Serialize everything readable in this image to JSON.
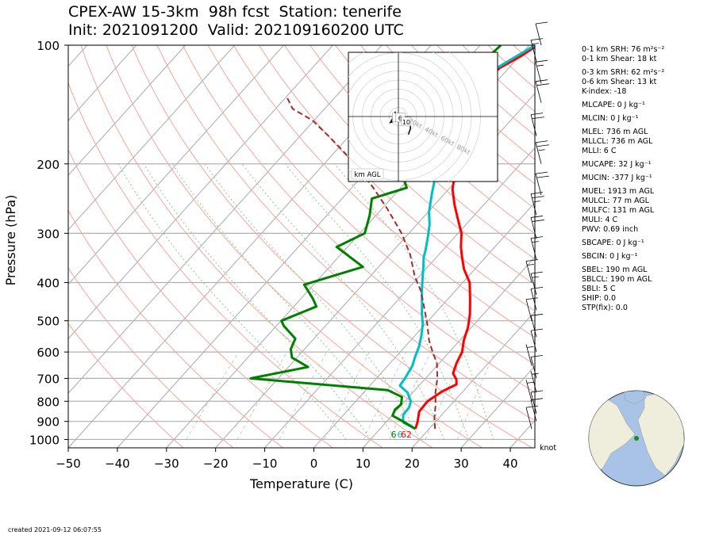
{
  "header": {
    "title_line1": "CPEX-AW 15-3km  98h fcst  Station: tenerife",
    "title_line2": "Init: 2021091200  Valid: 202109160200 UTC"
  },
  "footer": {
    "created": "created 2021-09-12 06:07:55",
    "barb_unit": "knot"
  },
  "indices": [
    {
      "label": "0-1 km SRH: 76 m²s⁻²"
    },
    {
      "label": "0-1 km Shear: 18 kt"
    },
    {
      "label": "0-3 km SRH: 62 m²s⁻²"
    },
    {
      "label": "0-6 km Shear: 13 kt"
    },
    {
      "label": "K-index: -18"
    },
    {
      "label": "MLCAPE: 0 J kg⁻¹"
    },
    {
      "label": "MLCIN: 0 J kg⁻¹"
    },
    {
      "label": "MLEL: 736 m AGL"
    },
    {
      "label": "MLLCL: 736 m AGL"
    },
    {
      "label": "MLLI: 6 C"
    },
    {
      "label": "MUCAPE: 32 J kg⁻¹"
    },
    {
      "label": "MUCIN: -377 J kg⁻¹"
    },
    {
      "label": "MUEL: 1913 m AGL"
    },
    {
      "label": "MULCL: 77 m AGL"
    },
    {
      "label": "MULFC: 131 m AGL"
    },
    {
      "label": "MULI: 4 C"
    },
    {
      "label": "PWV: 0.69 inch"
    },
    {
      "label": "SBCAPE: 0 J kg⁻¹"
    },
    {
      "label": "SBCIN: 0 J kg⁻¹"
    },
    {
      "label": "SBEL: 190 m AGL"
    },
    {
      "label": "SBLCL: 190 m AGL"
    },
    {
      "label": "SBLI: 5 C"
    },
    {
      "label": "SHIP: 0.0"
    },
    {
      "label": "STP(fix): 0.0"
    }
  ],
  "chart_data": [
    {
      "type": "line",
      "subtype": "skew-T log-P diagram",
      "xlabel": "Temperature (C)",
      "ylabel": "Pressure (hPa)",
      "xlim": [
        -50,
        45
      ],
      "ylim": [
        1050,
        100
      ],
      "y_scale": "log",
      "x_ticks": [
        -50,
        -40,
        -30,
        -20,
        -10,
        0,
        10,
        20,
        30,
        40
      ],
      "y_ticks": [
        100,
        200,
        300,
        400,
        500,
        600,
        700,
        800,
        900,
        1000
      ],
      "grid": true,
      "series": [
        {
          "name": "",
          "role": "temperature",
          "color": "#ff0000",
          "points": [
            [
              17.2,
              940
            ],
            [
              16.3,
              900
            ],
            [
              14.8,
              850
            ],
            [
              14.6,
              800
            ],
            [
              15.8,
              755
            ],
            [
              17.4,
              725
            ],
            [
              16.5,
              705
            ],
            [
              14.7,
              680
            ],
            [
              13.5,
              640
            ],
            [
              12.6,
              600
            ],
            [
              10.8,
              560
            ],
            [
              9.3,
              520
            ],
            [
              7.2,
              480
            ],
            [
              4.5,
              440
            ],
            [
              1.4,
              400
            ],
            [
              -2.2,
              370
            ],
            [
              -4.8,
              345
            ],
            [
              -6.9,
              325
            ],
            [
              -9.3,
              300
            ],
            [
              -12.8,
              275
            ],
            [
              -15.8,
              255
            ],
            [
              -19.2,
              232
            ],
            [
              -21.2,
              215
            ],
            [
              -23.6,
              195
            ],
            [
              -25.8,
              176
            ],
            [
              -28.4,
              160
            ],
            [
              -30.7,
              145
            ],
            [
              -32.4,
              132
            ],
            [
              -32.4,
              122
            ],
            [
              -31.8,
              114
            ],
            [
              -29.8,
              107
            ],
            [
              -28.3,
              100
            ]
          ]
        },
        {
          "name": "",
          "role": "dewpoint",
          "color": "#00bfc4",
          "points": [
            [
              17.2,
              940
            ],
            [
              13.5,
              905
            ],
            [
              12.1,
              865
            ],
            [
              12.0,
              830
            ],
            [
              11.2,
              800
            ],
            [
              8.9,
              760
            ],
            [
              6.1,
              730
            ],
            [
              5.8,
              700
            ],
            [
              5.5,
              680
            ],
            [
              5.0,
              650
            ],
            [
              4.0,
              620
            ],
            [
              2.8,
              580
            ],
            [
              1.3,
              545
            ],
            [
              -0.5,
              510
            ],
            [
              -2.6,
              480
            ],
            [
              -4.6,
              450
            ],
            [
              -6.8,
              420
            ],
            [
              -8.6,
              395
            ],
            [
              -10.9,
              365
            ],
            [
              -12.6,
              345
            ],
            [
              -13.6,
              330
            ],
            [
              -15.6,
              305
            ],
            [
              -17.4,
              285
            ],
            [
              -19.8,
              265
            ],
            [
              -22.6,
              238
            ],
            [
              -24.5,
              220
            ],
            [
              -26.3,
              200
            ],
            [
              -28.2,
              178
            ],
            [
              -30.3,
              158
            ],
            [
              -31.6,
              143
            ],
            [
              -32.8,
              130
            ],
            [
              -33.2,
              120
            ],
            [
              -32.4,
              114
            ],
            [
              -30.7,
              107
            ],
            [
              -28.8,
              100
            ]
          ]
        },
        {
          "name": "",
          "role": "wet-bulb",
          "color": "#008000",
          "points": [
            [
              17.2,
              940
            ],
            [
              13.3,
              900
            ],
            [
              10.1,
              870
            ],
            [
              9.5,
              840
            ],
            [
              9.8,
              815
            ],
            [
              8.6,
              780
            ],
            [
              4.5,
              750
            ],
            [
              -25.6,
              700
            ],
            [
              -16.0,
              655
            ],
            [
              -21.0,
              620
            ],
            [
              -22.8,
              590
            ],
            [
              -23.8,
              555
            ],
            [
              -28.5,
              515
            ],
            [
              -29.9,
              500
            ],
            [
              -25.4,
              460
            ],
            [
              -27.5,
              440
            ],
            [
              -31.9,
              405
            ],
            [
              -23.2,
              365
            ],
            [
              -32.2,
              325
            ],
            [
              -29.0,
              300
            ],
            [
              -31.3,
              270
            ],
            [
              -33.9,
              245
            ],
            [
              -28.8,
              230
            ],
            [
              -33.8,
              205
            ],
            [
              -34.3,
              190
            ],
            [
              -34.6,
              170
            ],
            [
              -35.7,
              150
            ],
            [
              -36.4,
              130
            ],
            [
              -36.6,
              115
            ],
            [
              -35.8,
              100
            ]
          ]
        },
        {
          "name": "",
          "role": "parcel",
          "color": "#a52a2a",
          "dashed": true,
          "points": [
            [
              21.2,
              940
            ],
            [
              19.0,
              880
            ],
            [
              17.0,
              820
            ],
            [
              14.6,
              760
            ],
            [
              12.4,
              700
            ],
            [
              9.5,
              640
            ],
            [
              6.6,
              600
            ],
            [
              3.7,
              560
            ],
            [
              0.4,
              510
            ],
            [
              -3.5,
              460
            ],
            [
              -7.0,
              420
            ],
            [
              -11.0,
              385
            ],
            [
              -15.8,
              340
            ],
            [
              -21.5,
              300
            ],
            [
              -28.9,
              260
            ],
            [
              -35.6,
              230
            ],
            [
              -42.3,
              205
            ],
            [
              -48.7,
              185
            ],
            [
              -54.2,
              170
            ],
            [
              -60.4,
              155
            ],
            [
              -66.5,
              145
            ],
            [
              -70.0,
              135
            ]
          ]
        }
      ],
      "surface_labels": {
        "wetbulb": "6",
        "dewpoint": "6",
        "temperature": "62"
      },
      "wind_barbs": [
        {
          "p": 940,
          "speed": 10
        },
        {
          "p": 900,
          "speed": 10
        },
        {
          "p": 860,
          "speed": 10
        },
        {
          "p": 800,
          "speed": 5
        },
        {
          "p": 760,
          "speed": 5
        },
        {
          "p": 700,
          "speed": 10
        },
        {
          "p": 650,
          "speed": 5
        },
        {
          "p": 600,
          "speed": 10
        },
        {
          "p": 550,
          "speed": 10
        },
        {
          "p": 500,
          "speed": 10
        },
        {
          "p": 470,
          "speed": 10
        },
        {
          "p": 430,
          "speed": 15
        },
        {
          "p": 400,
          "speed": 15
        },
        {
          "p": 350,
          "speed": 15
        },
        {
          "p": 310,
          "speed": 20
        },
        {
          "p": 270,
          "speed": 25
        },
        {
          "p": 240,
          "speed": 20
        },
        {
          "p": 200,
          "speed": 25
        },
        {
          "p": 170,
          "speed": 20
        },
        {
          "p": 140,
          "speed": 20
        },
        {
          "p": 125,
          "speed": 15
        },
        {
          "p": 110,
          "speed": 15
        },
        {
          "p": 100,
          "speed": 10
        }
      ]
    },
    {
      "type": "line",
      "subtype": "hodograph",
      "annotation": "km AGL",
      "ring_labels": [
        "20kt",
        "40kt",
        "60kt",
        "80kt"
      ],
      "rings_kt": [
        10,
        20,
        30,
        40,
        50,
        60,
        70,
        80,
        90
      ],
      "points_kt": [
        [
          -1.5,
          2.5
        ],
        [
          -2.0,
          0.5
        ],
        [
          -4.0,
          -3.0
        ],
        [
          -1.0,
          -2.0
        ],
        [
          3.0,
          -1.0
        ],
        [
          6.0,
          -2.0
        ],
        [
          6.0,
          -6.0
        ],
        [
          5.0,
          -9.0
        ]
      ],
      "height_labels": [
        {
          "text": "2",
          "u": -1,
          "v": -1.5
        },
        {
          "text": "6",
          "u": 0.5,
          "v": -1.5
        },
        {
          "text": "10",
          "u": 3.5,
          "v": -3.5
        }
      ]
    }
  ],
  "globe": {
    "colors": {
      "ocean": "#a8c3e6",
      "land": "#efeedc"
    },
    "station_color": "#1a8a1a"
  }
}
